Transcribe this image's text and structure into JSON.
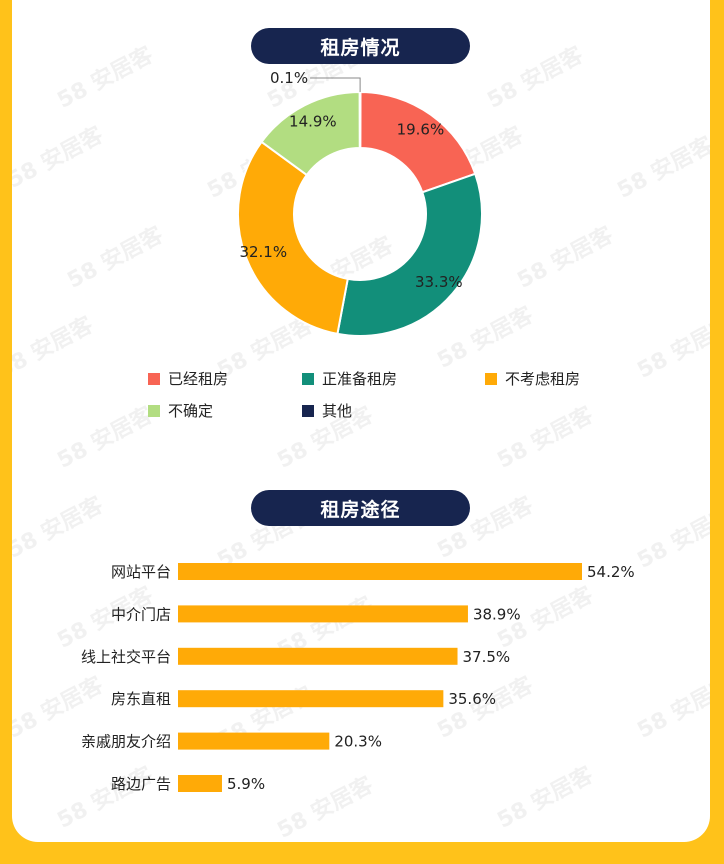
{
  "watermark": "58 安居客",
  "section1": {
    "title": "租房情况"
  },
  "section2": {
    "title": "租房途径"
  },
  "chart_data": [
    {
      "type": "pie",
      "title": "租房情况",
      "slices": [
        {
          "label": "已经租房",
          "value": 19.6,
          "display": "19.6%",
          "color": "#F86454"
        },
        {
          "label": "正准备租房",
          "value": 33.3,
          "display": "33.3%",
          "color": "#128F7A"
        },
        {
          "label": "不考虑租房",
          "value": 32.1,
          "display": "32.1%",
          "color": "#FFAA07"
        },
        {
          "label": "不确定",
          "value": 14.9,
          "display": "14.9%",
          "color": "#B2DD81"
        },
        {
          "label": "其他",
          "value": 0.1,
          "display": "0.1%",
          "color": "#17254F"
        }
      ],
      "legend": "bottom"
    },
    {
      "type": "bar",
      "orientation": "horizontal",
      "title": "租房途径",
      "categories": [
        "网站平台",
        "中介门店",
        "线上社交平台",
        "房东直租",
        "亲戚朋友介绍",
        "路边广告"
      ],
      "values": [
        54.2,
        38.9,
        37.5,
        35.6,
        20.3,
        5.9
      ],
      "value_labels": [
        "54.2%",
        "38.9%",
        "37.5%",
        "35.6%",
        "20.3%",
        "5.9%"
      ],
      "color": "#FFAA07",
      "grid": false
    }
  ]
}
